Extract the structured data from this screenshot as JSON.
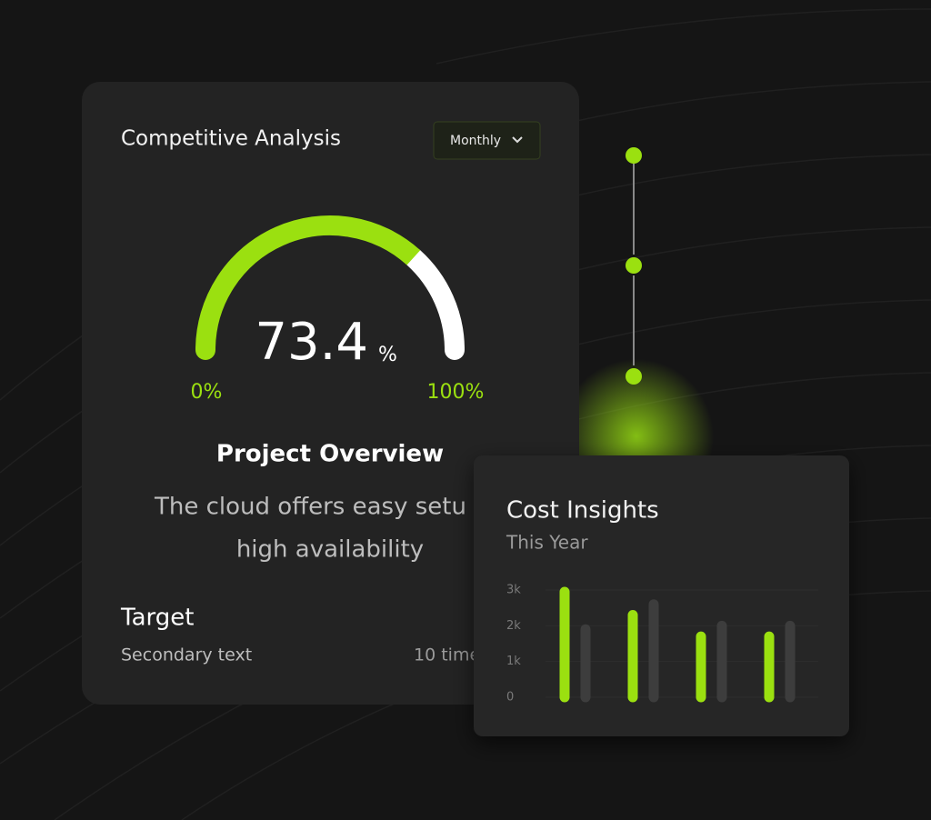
{
  "card_main": {
    "title": "Competitive Analysis",
    "dropdown": "Monthly",
    "gauge": {
      "value": 73.4,
      "unit": "%",
      "min": {
        "value": 0,
        "label": "0%"
      },
      "max": {
        "value": 100,
        "label": "100%"
      }
    },
    "heading": "Project Overview",
    "text_lines": [
      "The cloud offers easy setu",
      "high availability"
    ],
    "target": {
      "title": "Target",
      "secondary": "Secondary text",
      "meta": "10 time"
    }
  },
  "chart_data": {
    "type": "bar",
    "title": "Cost Insights",
    "subtitle": "This Year",
    "categories": [
      null,
      null,
      null,
      null
    ],
    "series": [
      {
        "color": "#9be010",
        "values": [
          2950,
          2300,
          1700,
          1700
        ]
      },
      {
        "color": "#3d3d3d",
        "values": [
          1900,
          2600,
          2000,
          2000
        ]
      }
    ],
    "ylim": [
      0,
      3000
    ],
    "yticks": [
      0,
      {
        "value": 1000,
        "label": "1k"
      },
      {
        "value": 2000,
        "label": "2k"
      },
      {
        "value": 3000,
        "label": "3k"
      }
    ],
    "grid": true
  }
}
